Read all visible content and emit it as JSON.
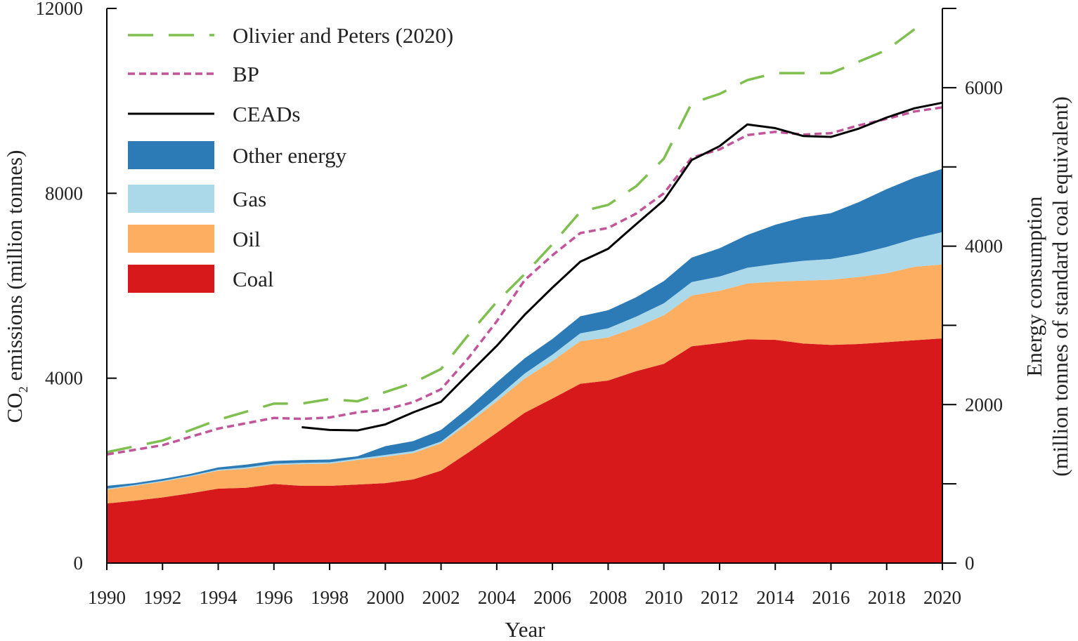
{
  "chart_data": {
    "type": "area",
    "x": [
      1990,
      1991,
      1992,
      1993,
      1994,
      1995,
      1996,
      1997,
      1998,
      1999,
      2000,
      2001,
      2002,
      2003,
      2004,
      2005,
      2006,
      2007,
      2008,
      2009,
      2010,
      2011,
      2012,
      2013,
      2014,
      2015,
      2016,
      2017,
      2018,
      2019,
      2020
    ],
    "stacked_series": [
      {
        "name": "Coal",
        "color": "#d7191c",
        "values": [
          1290,
          1350,
          1420,
          1510,
          1610,
          1630,
          1710,
          1670,
          1670,
          1700,
          1730,
          1810,
          2000,
          2400,
          2820,
          3250,
          3560,
          3880,
          3950,
          4150,
          4310,
          4690,
          4760,
          4840,
          4830,
          4750,
          4720,
          4740,
          4780,
          4820,
          4860
        ]
      },
      {
        "name": "Oil",
        "color": "#fdae61",
        "values": [
          300,
          320,
          340,
          360,
          390,
          410,
          410,
          470,
          480,
          530,
          570,
          570,
          590,
          630,
          680,
          740,
          810,
          920,
          930,
          950,
          1050,
          1100,
          1130,
          1210,
          1260,
          1360,
          1410,
          1450,
          1490,
          1590,
          1600
        ]
      },
      {
        "name": "Gas",
        "color": "#abd9e9",
        "values": [
          20,
          20,
          20,
          20,
          20,
          30,
          30,
          30,
          30,
          30,
          40,
          40,
          40,
          60,
          80,
          110,
          140,
          170,
          200,
          230,
          260,
          290,
          310,
          340,
          380,
          430,
          450,
          500,
          570,
          610,
          700
        ]
      },
      {
        "name": "Other energy",
        "color": "#2c7bb6",
        "values": [
          60,
          40,
          40,
          40,
          50,
          60,
          60,
          60,
          60,
          50,
          190,
          220,
          250,
          280,
          330,
          330,
          340,
          370,
          390,
          420,
          480,
          530,
          610,
          710,
          850,
          940,
          990,
          1120,
          1250,
          1320,
          1370
        ]
      }
    ],
    "lines": [
      {
        "name": "Olivier and Peters (2020)",
        "color": "#7fbf4f",
        "style": "long-dash",
        "x": [
          1990,
          1992,
          1994,
          1996,
          1997,
          1998,
          1999,
          2000,
          2001,
          2002,
          2003,
          2004,
          2005,
          2006,
          2007,
          2008,
          2009,
          2010,
          2011,
          2012,
          2013,
          2014,
          2015,
          2016,
          2017,
          2018,
          2019
        ],
        "values": [
          2400,
          2650,
          3100,
          3450,
          3450,
          3550,
          3500,
          3700,
          3900,
          4200,
          4950,
          5650,
          6250,
          6900,
          7600,
          7750,
          8150,
          8750,
          9950,
          10150,
          10450,
          10600,
          10600,
          10600,
          10850,
          11100,
          11550
        ]
      },
      {
        "name": "BP",
        "color": "#c2559a",
        "style": "short-dash",
        "x": [
          1990,
          1992,
          1994,
          1996,
          1997,
          1998,
          1999,
          2000,
          2001,
          2002,
          2003,
          2004,
          2005,
          2006,
          2007,
          2008,
          2009,
          2010,
          2011,
          2012,
          2013,
          2014,
          2015,
          2016,
          2017,
          2018,
          2019,
          2020
        ],
        "values": [
          2350,
          2550,
          2910,
          3140,
          3120,
          3150,
          3260,
          3320,
          3480,
          3760,
          4450,
          5230,
          6120,
          6660,
          7140,
          7250,
          7560,
          8000,
          8770,
          8950,
          9260,
          9330,
          9270,
          9300,
          9470,
          9610,
          9770,
          9860
        ]
      },
      {
        "name": "CEADs",
        "color": "#000000",
        "style": "solid",
        "x": [
          1997,
          1998,
          1999,
          2000,
          2001,
          2002,
          2003,
          2004,
          2005,
          2006,
          2007,
          2008,
          2009,
          2010,
          2011,
          2012,
          2013,
          2014,
          2015,
          2016,
          2017,
          2018,
          2019,
          2020
        ],
        "values": [
          2940,
          2880,
          2870,
          3000,
          3260,
          3490,
          4100,
          4700,
          5370,
          5960,
          6520,
          6800,
          7330,
          7850,
          8720,
          9020,
          9490,
          9410,
          9240,
          9220,
          9400,
          9640,
          9840,
          9960
        ]
      }
    ],
    "title": "",
    "xlabel": "Year",
    "ylabel": "CO2 emissions (million tonnes)",
    "ylabel_parts": {
      "main": "CO",
      "sub": "2",
      "rest": " emissions (million tonnes)"
    },
    "ylim": [
      0,
      12000
    ],
    "xlim": [
      1990,
      2020
    ],
    "x_ticks": [
      1990,
      1992,
      1994,
      1996,
      1998,
      2000,
      2002,
      2004,
      2006,
      2008,
      2010,
      2012,
      2014,
      2016,
      2018,
      2020
    ],
    "x_tick_labels": [
      "1990",
      "1992",
      "1994",
      "1996",
      "1998",
      "2000",
      "2002",
      "2004",
      "2006",
      "2008",
      "2010",
      "2012",
      "2014",
      "2016",
      "2018",
      "2020"
    ],
    "y_ticks": [
      0,
      4000,
      8000,
      12000
    ],
    "y_tick_labels": [
      "0",
      "4000",
      "8000",
      "12000"
    ],
    "y2_label_line1": "Energy consumption",
    "y2_label_line2": "(million tonnes of standard coal equivalent)",
    "y2lim": [
      0,
      7000
    ],
    "y2_ticks": [
      0,
      2000,
      4000,
      6000
    ],
    "y2_tick_labels": [
      "0",
      "2000",
      "4000",
      "6000"
    ],
    "y2_minor_ticks": [
      1000,
      3000,
      5000,
      7000
    ],
    "grid": false,
    "legend_position": "top-left",
    "legend": [
      {
        "label": "Olivier and Peters (2020)",
        "kind": "line",
        "style": "long-dash",
        "color": "#7fbf4f"
      },
      {
        "label": "BP",
        "kind": "line",
        "style": "short-dash",
        "color": "#c2559a"
      },
      {
        "label": "CEADs",
        "kind": "line",
        "style": "solid",
        "color": "#000000"
      },
      {
        "label": "Other energy",
        "kind": "patch",
        "color": "#2c7bb6"
      },
      {
        "label": "Gas",
        "kind": "patch",
        "color": "#abd9e9"
      },
      {
        "label": "Oil",
        "kind": "patch",
        "color": "#fdae61"
      },
      {
        "label": "Coal",
        "kind": "patch",
        "color": "#d7191c"
      }
    ]
  }
}
